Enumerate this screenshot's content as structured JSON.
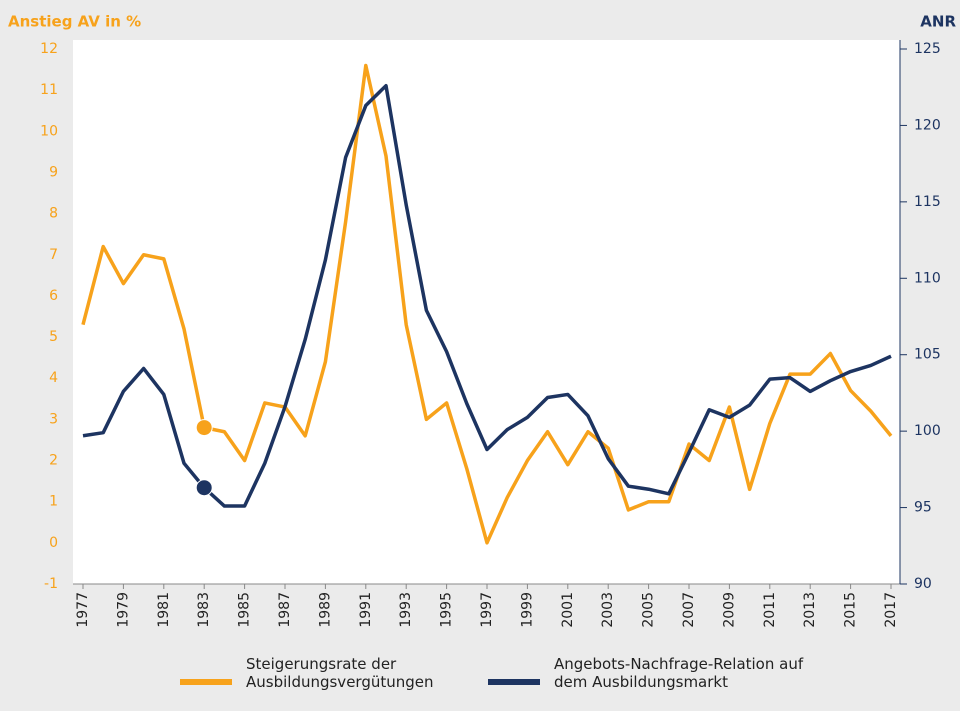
{
  "chart_data": {
    "type": "line",
    "ylabel": "Anstieg AV in %",
    "y2label": "ANR",
    "x": [
      1977,
      1978,
      1979,
      1980,
      1981,
      1982,
      1983,
      1984,
      1985,
      1986,
      1987,
      1988,
      1989,
      1990,
      1991,
      1992,
      1993,
      1994,
      1995,
      1996,
      1997,
      1998,
      1999,
      2000,
      2001,
      2002,
      2003,
      2004,
      2005,
      2006,
      2007,
      2008,
      2009,
      2010,
      2011,
      2012,
      2013,
      2014,
      2015,
      2016,
      2017
    ],
    "xlim": [
      1977,
      2017
    ],
    "xticks": [
      1977,
      1979,
      1981,
      1983,
      1985,
      1987,
      1989,
      1991,
      1993,
      1995,
      1997,
      1999,
      2001,
      2003,
      2005,
      2007,
      2009,
      2011,
      2013,
      2015,
      2017
    ],
    "ylim": [
      -1,
      12
    ],
    "yticks": [
      -1,
      0,
      1,
      2,
      3,
      4,
      5,
      6,
      7,
      8,
      9,
      10,
      11,
      12
    ],
    "y2lim": [
      90,
      125
    ],
    "y2ticks": [
      90,
      95,
      100,
      105,
      110,
      115,
      120,
      125
    ],
    "marker_at": 1983,
    "series": [
      {
        "name": "Steigerungsrate der Ausbildungsvergütungen",
        "color": "#f7a21b",
        "values": [
          5.3,
          7.2,
          6.3,
          7.0,
          6.9,
          5.2,
          2.8,
          2.7,
          2.0,
          3.4,
          3.3,
          2.6,
          4.4,
          7.8,
          11.6,
          9.4,
          5.3,
          3.0,
          3.4,
          1.8,
          0.0,
          1.1,
          2.0,
          2.7,
          1.9,
          2.7,
          2.3,
          0.8,
          1.0,
          1.0,
          2.4,
          2.0,
          3.3,
          1.3,
          2.9,
          4.1,
          4.1,
          4.6,
          3.7,
          3.2,
          2.6
        ]
      },
      {
        "name": "Angebots-Nachfrage-Relation auf dem Ausbildungsmarkt",
        "color": "#1d3461",
        "axis": "y2",
        "values": [
          99.7,
          99.9,
          102.6,
          104.1,
          102.4,
          97.9,
          96.3,
          95.1,
          95.1,
          97.9,
          101.6,
          106.0,
          111.2,
          117.9,
          121.3,
          122.6,
          114.8,
          107.9,
          105.2,
          101.8,
          98.8,
          100.1,
          100.9,
          102.2,
          102.4,
          101.0,
          98.2,
          96.4,
          96.2,
          95.9,
          98.6,
          101.4,
          100.9,
          101.7,
          103.4,
          103.5,
          102.6,
          103.3,
          103.9,
          104.3,
          104.9
        ]
      }
    ]
  }
}
